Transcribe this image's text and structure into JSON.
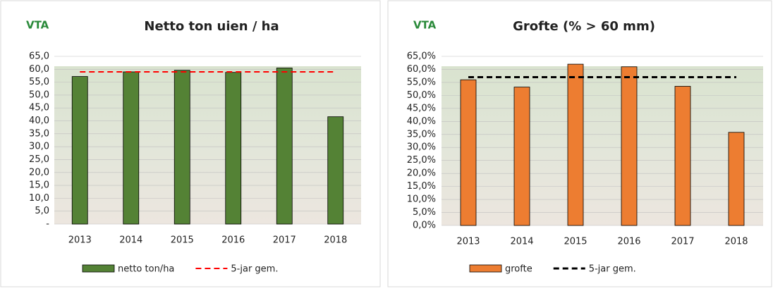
{
  "chart_data": [
    {
      "type": "bar",
      "title": "Netto ton uien / ha",
      "logo": "VTA",
      "categories": [
        "2013",
        "2014",
        "2015",
        "2016",
        "2017",
        "2018"
      ],
      "series": [
        {
          "name": "netto ton/ha",
          "type": "bar",
          "color": "#548235",
          "values": [
            57.2,
            59.0,
            59.6,
            58.8,
            60.5,
            41.6
          ]
        },
        {
          "name": "5-jar gem.",
          "type": "line",
          "dash": true,
          "color": "#ff0000",
          "values": [
            59.0,
            59.0,
            59.0,
            59.0,
            59.0,
            59.0
          ]
        }
      ],
      "ylim": [
        0,
        65
      ],
      "yticks": [
        {
          "value": 0,
          "label": "-"
        },
        {
          "value": 5,
          "label": "5,0"
        },
        {
          "value": 10,
          "label": "10,0"
        },
        {
          "value": 15,
          "label": "15,0"
        },
        {
          "value": 20,
          "label": "20,0"
        },
        {
          "value": 25,
          "label": "25,0"
        },
        {
          "value": 30,
          "label": "30,0"
        },
        {
          "value": 35,
          "label": "35,0"
        },
        {
          "value": 40,
          "label": "40,0"
        },
        {
          "value": 45,
          "label": "45,0"
        },
        {
          "value": 50,
          "label": "50,0"
        },
        {
          "value": 55,
          "label": "55,0"
        },
        {
          "value": 60,
          "label": "60,0"
        },
        {
          "value": 65,
          "label": "65,0"
        }
      ],
      "grid": true
    },
    {
      "type": "bar",
      "title": "Grofte (% > 60 mm)",
      "logo": "VTA",
      "categories": [
        "2013",
        "2014",
        "2015",
        "2016",
        "2017",
        "2018"
      ],
      "series": [
        {
          "name": "grofte",
          "type": "bar",
          "color": "#ed7d31",
          "values": [
            56.0,
            53.2,
            62.0,
            61.0,
            53.5,
            35.8
          ]
        },
        {
          "name": "5-jar gem.",
          "type": "line",
          "dash": true,
          "color": "#000000",
          "values": [
            57.0,
            57.0,
            57.0,
            57.0,
            57.0,
            57.0
          ]
        }
      ],
      "ylim": [
        0,
        65
      ],
      "yticks": [
        {
          "value": 0,
          "label": "0,0%"
        },
        {
          "value": 5,
          "label": "5,0%"
        },
        {
          "value": 10,
          "label": "10,0%"
        },
        {
          "value": 15,
          "label": "15,0%"
        },
        {
          "value": 20,
          "label": "20,0%"
        },
        {
          "value": 25,
          "label": "25,0%"
        },
        {
          "value": 30,
          "label": "30,0%"
        },
        {
          "value": 35,
          "label": "35,0%"
        },
        {
          "value": 40,
          "label": "40,0%"
        },
        {
          "value": 45,
          "label": "45,0%"
        },
        {
          "value": 50,
          "label": "50,0%"
        },
        {
          "value": 55,
          "label": "55,0%"
        },
        {
          "value": 60,
          "label": "60,0%"
        },
        {
          "value": 65,
          "label": "65,0%"
        }
      ],
      "grid": true
    }
  ]
}
